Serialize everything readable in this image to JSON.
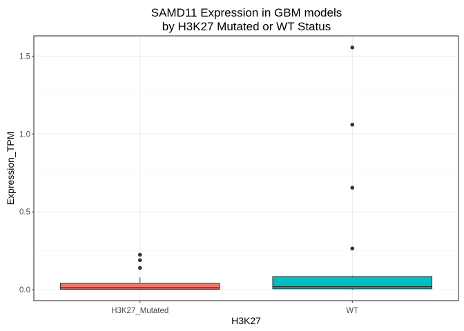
{
  "chart_data": {
    "type": "boxplot",
    "title_lines": [
      "SAMD11 Expression in GBM models",
      "by H3K27 Mutated or WT Status"
    ],
    "xlabel": "H3K27",
    "ylabel": "Expression_TPM",
    "ylim": [
      -0.07,
      1.63
    ],
    "yticks": [
      0.0,
      0.5,
      1.0,
      1.5
    ],
    "ytick_labels": [
      "0.0",
      "0.5",
      "1.0",
      "1.5"
    ],
    "grid": true,
    "legend": "none",
    "categories": [
      "H3K27_Mutated",
      "WT"
    ],
    "boxes": [
      {
        "category": "H3K27_Mutated",
        "color": "#F8766D",
        "q1": 0.003,
        "median": 0.012,
        "q3": 0.042,
        "whisker_low": 0.0,
        "whisker_high": 0.08,
        "outliers": [
          0.225,
          0.19,
          0.14
        ]
      },
      {
        "category": "WT",
        "color": "#00BFC4",
        "q1": 0.006,
        "median": 0.02,
        "q3": 0.085,
        "whisker_low": 0.0,
        "whisker_high": 0.09,
        "outliers": [
          1.555,
          1.06,
          0.655,
          0.265
        ]
      }
    ]
  }
}
